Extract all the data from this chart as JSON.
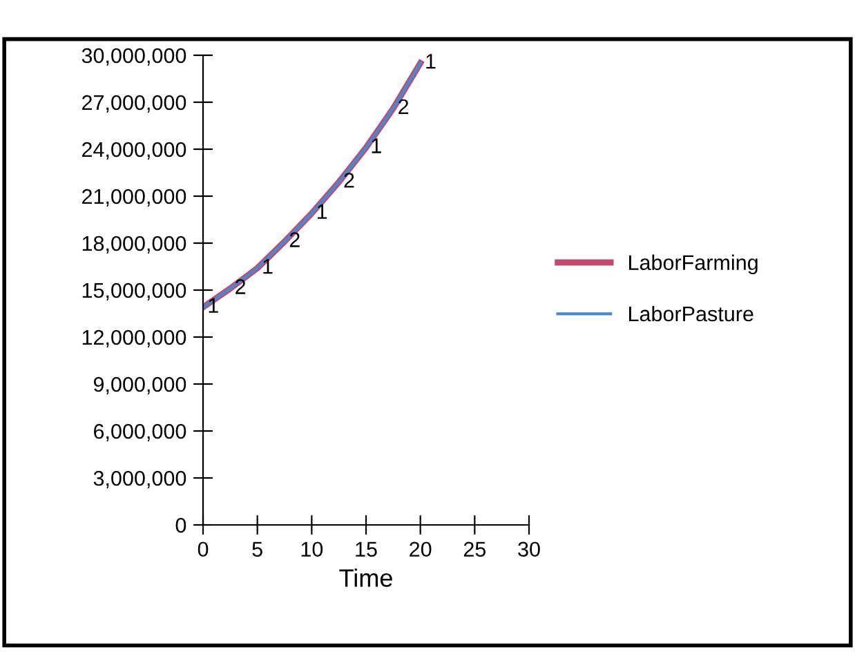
{
  "chart_data": {
    "type": "line",
    "xlabel": "Time",
    "x": [
      0,
      2.5,
      5,
      7.5,
      10,
      12.5,
      15,
      17.5,
      20
    ],
    "series": [
      {
        "name": "LaborFarming",
        "color": "#c04a70",
        "values": [
          13900000,
          15100000,
          16400000,
          18100000,
          19900000,
          21900000,
          24100000,
          26600000,
          29500000
        ]
      },
      {
        "name": "LaborPasture",
        "color": "#4a88cc",
        "values": [
          13900000,
          15100000,
          16400000,
          18100000,
          19900000,
          21900000,
          24100000,
          26600000,
          29500000
        ]
      }
    ],
    "xlim": [
      0,
      30
    ],
    "xticks": [
      0,
      5,
      10,
      15,
      20,
      25,
      30
    ],
    "ylim": [
      0,
      30000000
    ],
    "yticks": [
      {
        "value": 0,
        "label": "0"
      },
      {
        "value": 3000000,
        "label": "3,000,000"
      },
      {
        "value": 6000000,
        "label": "6,000,000"
      },
      {
        "value": 9000000,
        "label": "9,000,000"
      },
      {
        "value": 12000000,
        "label": "12,000,000"
      },
      {
        "value": 15000000,
        "label": "15,000,000"
      },
      {
        "value": 18000000,
        "label": "18,000,000"
      },
      {
        "value": 21000000,
        "label": "21,000,000"
      },
      {
        "value": 24000000,
        "label": "24,000,000"
      },
      {
        "value": 27000000,
        "label": "27,000,000"
      },
      {
        "value": 30000000,
        "label": "30,000,000"
      }
    ],
    "annotations": [
      {
        "text": "1",
        "x": 0,
        "y": 13900000
      },
      {
        "text": "2",
        "x": 2.5,
        "y": 15100000
      },
      {
        "text": "1",
        "x": 5,
        "y": 16400000
      },
      {
        "text": "2",
        "x": 7.5,
        "y": 18100000
      },
      {
        "text": "1",
        "x": 10,
        "y": 19900000
      },
      {
        "text": "2",
        "x": 12.5,
        "y": 21900000
      },
      {
        "text": "1",
        "x": 15,
        "y": 24100000
      },
      {
        "text": "2",
        "x": 17.5,
        "y": 26600000
      },
      {
        "text": "1",
        "x": 20,
        "y": 29500000
      }
    ],
    "grid": false,
    "legend": "right"
  }
}
